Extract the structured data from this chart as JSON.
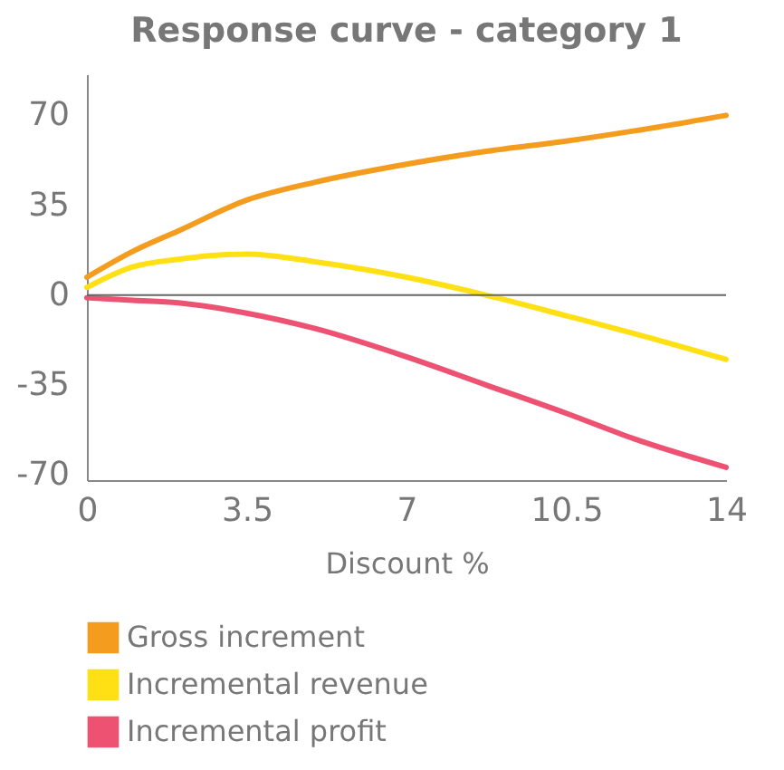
{
  "chart_data": {
    "type": "line",
    "title": "Response curve - category 1",
    "xlabel": "Discount %",
    "xlim": [
      0,
      14
    ],
    "xticks": [
      0,
      3.5,
      7,
      10.5,
      14
    ],
    "ylim": [
      -72,
      86
    ],
    "yticks": [
      -70,
      -35,
      0,
      35,
      70
    ],
    "grid": false,
    "legend": "bottom",
    "marker": "none",
    "line_style": "solid",
    "x": [
      0,
      1,
      2,
      3.5,
      5,
      7,
      8.75,
      10.5,
      12,
      14
    ],
    "series": [
      {
        "name": "Gross increment",
        "color": "#f39c1e",
        "values": [
          7,
          17,
          25,
          37,
          44,
          51,
          56,
          60,
          64,
          70
        ]
      },
      {
        "name": "Incremental revenue",
        "color": "#ffe014",
        "values": [
          3,
          11,
          14,
          16,
          13,
          7,
          0,
          -8,
          -15,
          -25
        ]
      },
      {
        "name": "Incremental profit",
        "color": "#ee5273",
        "values": [
          -1,
          -2,
          -3,
          -7,
          -13,
          -24,
          -35,
          -46,
          -56,
          -67
        ]
      }
    ],
    "ref_lines": [
      {
        "axis": "y",
        "value": 0,
        "color": "#666666"
      }
    ]
  }
}
